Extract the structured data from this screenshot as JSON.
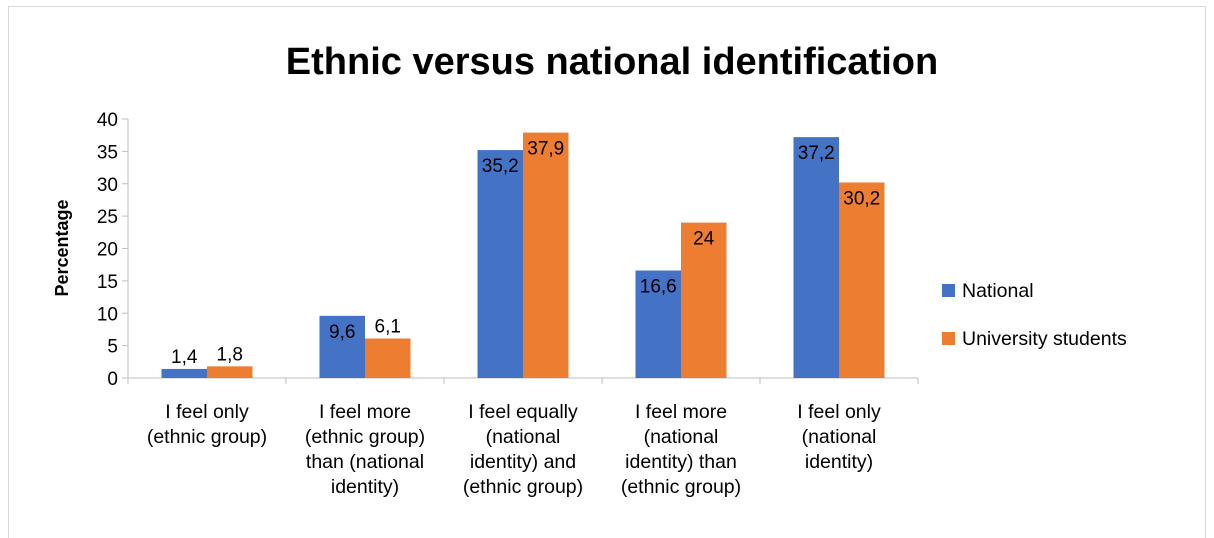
{
  "chart_data": {
    "type": "bar",
    "title": "Ethnic versus national identification",
    "ylabel": "Percentage",
    "xlabel": "",
    "ylim": [
      0,
      40
    ],
    "yticks": [
      0,
      5,
      10,
      15,
      20,
      25,
      30,
      35,
      40
    ],
    "grid": false,
    "legend_position": "right",
    "categories": [
      [
        "I feel only",
        "(ethnic group)"
      ],
      [
        "I feel more",
        "(ethnic group)",
        "than (national",
        "identity)"
      ],
      [
        "I feel equally",
        "(national",
        "identity) and",
        "(ethnic group)"
      ],
      [
        "I feel more",
        "(national",
        "identity) than",
        "(ethnic group)"
      ],
      [
        "I feel only",
        "(national",
        "identity)"
      ]
    ],
    "series": [
      {
        "name": "National",
        "color": "#4472c4",
        "values": [
          1.4,
          9.6,
          35.2,
          16.6,
          37.2
        ],
        "labels": [
          "1,4",
          "9,6",
          "35,2",
          "16,6",
          "37,2"
        ]
      },
      {
        "name": "University students",
        "color": "#ed7d31",
        "values": [
          1.8,
          6.1,
          37.9,
          24,
          30.2
        ],
        "labels": [
          "1,8",
          "6,1",
          "37,9",
          "24",
          "30,2"
        ]
      }
    ]
  }
}
